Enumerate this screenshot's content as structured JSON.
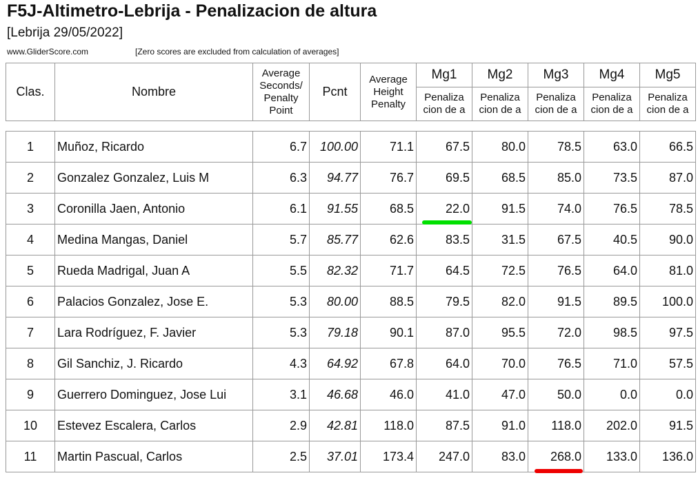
{
  "title": "F5J-Altimetro-Lebrija - Penalizacion de altura",
  "subtitle": "[Lebrija 29/05/2022]",
  "site": "www.GliderScore.com",
  "note": "[Zero scores are excluded from calculation of averages]",
  "headers": {
    "clas": "Clas.",
    "nombre": "Nombre",
    "avg_sec": "Average Seconds/ Penalty Point",
    "pcnt": "Pcnt",
    "avg_height": "Average Height Penalty",
    "rounds": [
      "Mg1",
      "Mg2",
      "Mg3",
      "Mg4",
      "Mg5"
    ],
    "round_sub": "Penaliza cion de a"
  },
  "marks": {
    "green": "#00e000",
    "red": "#ee0000"
  },
  "rows": [
    {
      "clas": "1",
      "name": "Muñoz, Ricardo",
      "avg": "6.7",
      "pcnt": "100.00",
      "height": "71.1",
      "mg": [
        "67.5",
        "80.0",
        "78.5",
        "63.0",
        "66.5"
      ]
    },
    {
      "clas": "2",
      "name": "Gonzalez Gonzalez, Luis M",
      "avg": "6.3",
      "pcnt": "94.77",
      "height": "76.7",
      "mg": [
        "69.5",
        "68.5",
        "85.0",
        "73.5",
        "87.0"
      ]
    },
    {
      "clas": "3",
      "name": "Coronilla Jaen, Antonio",
      "avg": "6.1",
      "pcnt": "91.55",
      "height": "68.5",
      "mg": [
        "22.0",
        "91.5",
        "74.0",
        "76.5",
        "78.5"
      ]
    },
    {
      "clas": "4",
      "name": "Medina Mangas, Daniel",
      "avg": "5.7",
      "pcnt": "85.77",
      "height": "62.6",
      "mg": [
        "83.5",
        "31.5",
        "67.5",
        "40.5",
        "90.0"
      ]
    },
    {
      "clas": "5",
      "name": "Rueda Madrigal, Juan A",
      "avg": "5.5",
      "pcnt": "82.32",
      "height": "71.7",
      "mg": [
        "64.5",
        "72.5",
        "76.5",
        "64.0",
        "81.0"
      ]
    },
    {
      "clas": "6",
      "name": "Palacios Gonzalez, Jose E.",
      "avg": "5.3",
      "pcnt": "80.00",
      "height": "88.5",
      "mg": [
        "79.5",
        "82.0",
        "91.5",
        "89.5",
        "100.0"
      ]
    },
    {
      "clas": "7",
      "name": "Lara Rodríguez, F. Javier",
      "avg": "5.3",
      "pcnt": "79.18",
      "height": "90.1",
      "mg": [
        "87.0",
        "95.5",
        "72.0",
        "98.5",
        "97.5"
      ]
    },
    {
      "clas": "8",
      "name": "Gil Sanchiz, J. Ricardo",
      "avg": "4.3",
      "pcnt": "64.92",
      "height": "67.8",
      "mg": [
        "64.0",
        "70.0",
        "76.5",
        "71.0",
        "57.5"
      ]
    },
    {
      "clas": "9",
      "name": "Guerrero Dominguez, Jose Lui",
      "avg": "3.1",
      "pcnt": "46.68",
      "height": "46.0",
      "mg": [
        "41.0",
        "47.0",
        "50.0",
        "0.0",
        "0.0"
      ]
    },
    {
      "clas": "10",
      "name": "Estevez Escalera, Carlos",
      "avg": "2.9",
      "pcnt": "42.81",
      "height": "118.0",
      "mg": [
        "87.5",
        "91.0",
        "118.0",
        "202.0",
        "91.5"
      ]
    },
    {
      "clas": "11",
      "name": "Martin Pascual, Carlos",
      "avg": "2.5",
      "pcnt": "37.01",
      "height": "173.4",
      "mg": [
        "247.0",
        "83.0",
        "268.0",
        "133.0",
        "136.0"
      ]
    }
  ]
}
